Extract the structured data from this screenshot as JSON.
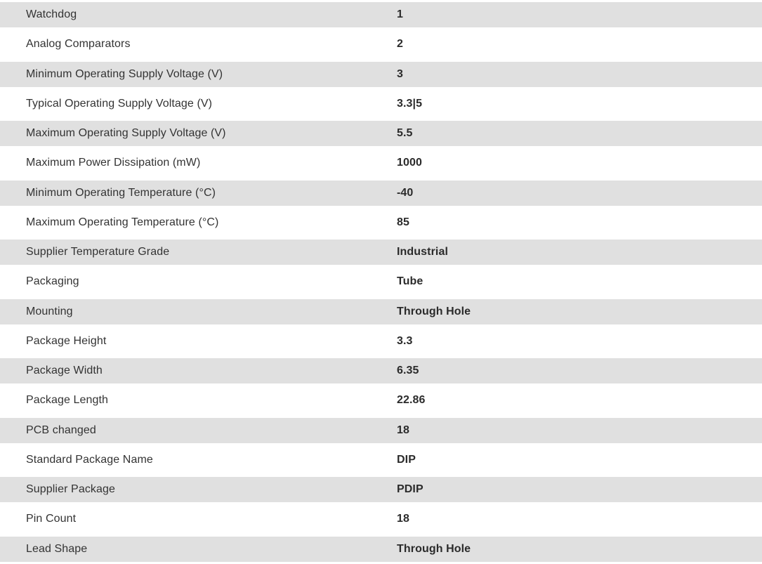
{
  "table": {
    "colors": {
      "row_alt_bg": "#e0e0e0",
      "row_bg": "#ffffff",
      "label_text": "#333333",
      "value_text": "#2b2b2b"
    },
    "rows": [
      {
        "label": "Watchdog",
        "value": "1"
      },
      {
        "label": "Analog Comparators",
        "value": "2"
      },
      {
        "label": "Minimum Operating Supply Voltage (V)",
        "value": "3"
      },
      {
        "label": "Typical Operating Supply Voltage (V)",
        "value": "3.3|5"
      },
      {
        "label": "Maximum Operating Supply Voltage (V)",
        "value": "5.5"
      },
      {
        "label": "Maximum Power Dissipation (mW)",
        "value": "1000"
      },
      {
        "label": "Minimum Operating Temperature (°C)",
        "value": "-40"
      },
      {
        "label": "Maximum Operating Temperature (°C)",
        "value": "85"
      },
      {
        "label": "Supplier Temperature Grade",
        "value": "Industrial"
      },
      {
        "label": "Packaging",
        "value": "Tube"
      },
      {
        "label": "Mounting",
        "value": "Through Hole"
      },
      {
        "label": "Package Height",
        "value": "3.3"
      },
      {
        "label": "Package Width",
        "value": "6.35"
      },
      {
        "label": "Package Length",
        "value": "22.86"
      },
      {
        "label": "PCB changed",
        "value": "18"
      },
      {
        "label": "Standard Package Name",
        "value": "DIP"
      },
      {
        "label": "Supplier Package",
        "value": "PDIP"
      },
      {
        "label": "Pin Count",
        "value": "18"
      },
      {
        "label": "Lead Shape",
        "value": "Through Hole"
      }
    ]
  }
}
